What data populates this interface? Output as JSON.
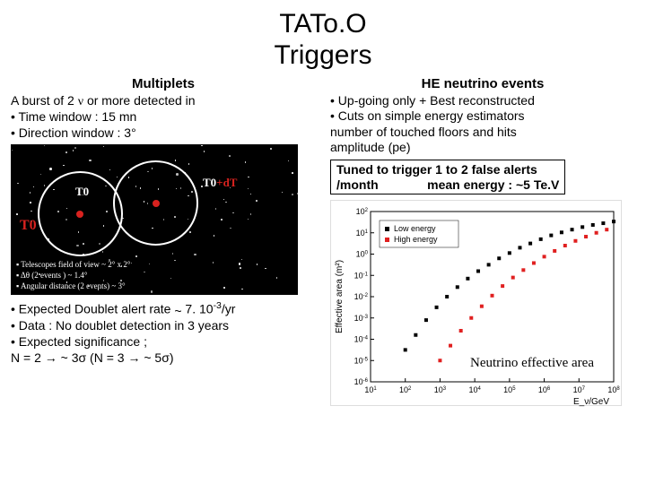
{
  "title_line1": "TATo.O",
  "title_line2": "Triggers",
  "left": {
    "heading": "Multiplets",
    "line1a": "A burst of 2 ",
    "line1_nu": "ν",
    "line1b": " or more detected in",
    "line2": "• Time window : 15 mn",
    "line3": "• Direction window : 3°",
    "below1a": "• Expected Doublet alert rate ",
    "below1b": "~",
    "below1c": " 7. 10",
    "below1_exp": "-3",
    "below1d": "/yr",
    "below2": "• Data :  No doublet detection in 3 years",
    "below3": "• Expected significance ;",
    "below4a": "N = 2 → ",
    "below4b": "~",
    "below4c": " 3σ (N = 3 → ",
    "below4d": "~",
    "below4e": " 5σ)"
  },
  "right": {
    "heading": "HE neutrino events",
    "line1": "• Up-going only + Best reconstructed",
    "line2": "• Cuts on simple energy estimators",
    "line3": "number of touched  floors and hits",
    "line4": "amplitude (pe)",
    "tuned_l1": "Tuned to trigger 1 to 2 false alerts",
    "tuned_l2a": "/month",
    "tuned_l2b": "mean energy : ",
    "tuned_l2c": "~",
    "tuned_l2d": "5 Te.V",
    "chart_label": "Neutrino effective area"
  },
  "sky": {
    "t0": "T0",
    "t0dt": "T0+dT",
    "legend1": "Telescopes field of view ~ 2° x 2°",
    "legend2": "Δθ (2 events ) ~ 1.4°",
    "legend3": "Angular distance (2 events) ~ 3°",
    "red": "#d8221f",
    "white": "#ffffff"
  },
  "chart": {
    "xlabel": "E_ν/GeV",
    "ylabel": "Effective area (m²)",
    "legend_low": "Low energy",
    "legend_high": "High energy",
    "x_log_ticks": [
      1,
      2,
      3,
      4,
      5,
      6,
      7,
      8
    ],
    "y_log_ticks": [
      -6,
      -5,
      -4,
      -3,
      -2,
      -1,
      0,
      1,
      2
    ],
    "low_color": "#000000",
    "high_color": "#e02020",
    "bg": "#ffffff",
    "axis_color": "#000000",
    "low_series_logx": [
      2.0,
      2.3,
      2.6,
      2.9,
      3.2,
      3.5,
      3.8,
      4.1,
      4.4,
      4.7,
      5.0,
      5.3,
      5.6,
      5.9,
      6.2,
      6.5,
      6.8,
      7.1,
      7.4,
      7.7,
      8.0
    ],
    "low_series_logy": [
      -4.5,
      -3.8,
      -3.1,
      -2.5,
      -2.0,
      -1.55,
      -1.15,
      -0.8,
      -0.5,
      -0.2,
      0.05,
      0.3,
      0.5,
      0.7,
      0.88,
      1.02,
      1.15,
      1.27,
      1.37,
      1.45,
      1.53
    ],
    "high_series_logx": [
      3.0,
      3.3,
      3.6,
      3.9,
      4.2,
      4.5,
      4.8,
      5.1,
      5.4,
      5.7,
      6.0,
      6.3,
      6.6,
      6.9,
      7.2,
      7.5,
      7.8
    ],
    "high_series_logy": [
      -5.0,
      -4.3,
      -3.6,
      -3.0,
      -2.45,
      -1.95,
      -1.5,
      -1.1,
      -0.75,
      -0.42,
      -0.12,
      0.15,
      0.4,
      0.62,
      0.82,
      1.0,
      1.15
    ]
  }
}
